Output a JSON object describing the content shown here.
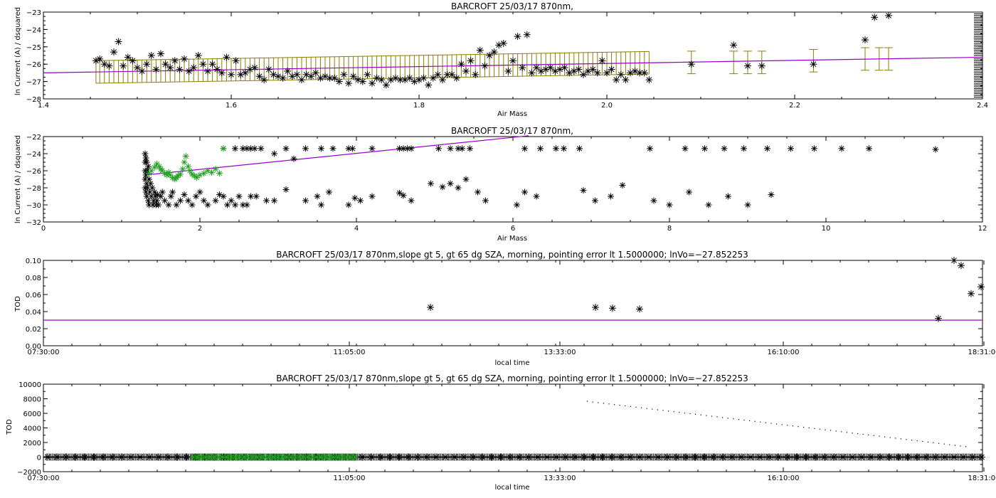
{
  "chart_data": [
    {
      "type": "scatter",
      "title": "BARCROFT 25/03/17 870nm,",
      "xlabel": "Air Mass",
      "ylabel": "ln Current (A) / dsquared",
      "xlim": [
        1.4,
        2.4
      ],
      "ylim": [
        -28,
        -23
      ],
      "xticks": [
        1.4,
        1.6,
        1.8,
        2.0,
        2.2,
        2.4
      ],
      "xtick_labels": [
        "1.4",
        "1.6",
        "1.8",
        "2.0",
        "2.2",
        "2.4"
      ],
      "yticks": [
        -28,
        -27,
        -26,
        -25,
        -24,
        -23
      ],
      "ytick_labels": [
        "−28",
        "−27",
        "−26",
        "−25",
        "−24",
        "−23"
      ],
      "colors": {
        "points": "#000000",
        "fit": "#9900cc",
        "errorbars": "#8b7d00"
      },
      "series": [
        {
          "values_x": [
            1.456,
            1.46,
            1.465,
            1.47,
            1.475,
            1.48,
            1.485,
            1.49,
            1.495,
            1.5,
            1.505,
            1.51,
            1.515,
            1.52,
            1.525,
            1.53,
            1.535,
            1.54,
            1.545,
            1.55,
            1.555,
            1.56,
            1.565,
            1.57,
            1.575,
            1.58,
            1.585,
            1.59,
            1.595,
            1.6,
            1.605,
            1.61,
            1.615,
            1.62,
            1.625,
            1.63,
            1.635,
            1.64,
            1.645,
            1.65,
            1.655,
            1.66,
            1.665,
            1.67,
            1.675,
            1.68,
            1.685,
            1.69,
            1.695,
            1.7,
            1.705,
            1.71,
            1.715,
            1.72,
            1.725,
            1.73,
            1.735,
            1.74,
            1.745,
            1.75,
            1.755,
            1.76,
            1.765,
            1.77,
            1.775,
            1.78,
            1.785,
            1.79,
            1.795,
            1.8,
            1.805,
            1.81,
            1.815,
            1.82,
            1.825,
            1.83,
            1.835,
            1.84,
            1.845,
            1.85,
            1.855,
            1.86,
            1.865,
            1.87,
            1.875,
            1.88,
            1.885,
            1.89,
            1.895,
            1.9,
            1.905,
            1.91,
            1.915,
            1.92,
            1.925,
            1.93,
            1.935,
            1.94,
            1.945,
            1.95,
            1.955,
            1.96,
            1.965,
            1.97,
            1.975,
            1.98,
            1.985,
            1.99,
            1.995,
            2.0,
            2.005,
            2.01,
            2.015,
            2.02,
            2.025,
            2.03,
            2.035,
            2.04,
            2.045
          ],
          "values_y": [
            -25.8,
            -25.7,
            -26.0,
            -26.1,
            -25.3,
            -24.7,
            -26.1,
            -25.6,
            -25.8,
            -26.2,
            -26.4,
            -26.0,
            -25.5,
            -26.3,
            -25.4,
            -26.0,
            -26.2,
            -25.8,
            -26.3,
            -25.7,
            -26.4,
            -26.2,
            -25.5,
            -26.0,
            -26.4,
            -26.0,
            -26.3,
            -26.5,
            -25.6,
            -26.6,
            -25.8,
            -26.6,
            -26.5,
            -26.3,
            -26.2,
            -26.7,
            -26.9,
            -26.3,
            -26.6,
            -26.7,
            -26.8,
            -26.4,
            -26.7,
            -26.6,
            -26.9,
            -26.6,
            -26.7,
            -26.5,
            -26.8,
            -26.7,
            -26.8,
            -26.8,
            -27.0,
            -26.6,
            -27.1,
            -26.7,
            -26.9,
            -27.0,
            -26.6,
            -27.1,
            -26.8,
            -26.9,
            -27.2,
            -26.9,
            -26.8,
            -26.9,
            -26.9,
            -26.8,
            -27.0,
            -26.9,
            -26.8,
            -27.2,
            -26.8,
            -26.6,
            -26.9,
            -26.6,
            -26.6,
            -26.8,
            -26.0,
            -26.4,
            -25.8,
            -26.6,
            -25.2,
            -26.1,
            -25.5,
            -25.3,
            -24.9,
            -24.8,
            -26.4,
            -25.8,
            -24.4,
            -26.2,
            -24.3,
            -26.5,
            -26.2,
            -26.4,
            -26.3,
            -26.2,
            -26.4,
            -26.3,
            -26.2,
            -26.5,
            -26.4,
            -26.3,
            -26.6,
            -26.4,
            -26.3,
            -26.5,
            -25.8,
            -26.5,
            -26.3,
            -26.9,
            -26.6,
            -26.9,
            -26.5,
            -26.4,
            -26.5,
            -26.5,
            -26.9
          ]
        },
        {
          "name": "isolated",
          "values_x": [
            2.09,
            2.135,
            2.15,
            2.165,
            2.22,
            2.275,
            2.285,
            2.3
          ],
          "values_y": [
            -26.0,
            -24.9,
            -26.1,
            -26.1,
            -26.0,
            -24.6,
            -23.3,
            -23.2
          ]
        }
      ],
      "errorbar_x": [
        2.09,
        2.135,
        2.15,
        2.165,
        2.22,
        2.275,
        2.29,
        2.3
      ],
      "errorbar_y": [
        -25.9,
        -25.9,
        -25.9,
        -25.9,
        -25.8,
        -25.7,
        -25.7,
        -25.7
      ],
      "errorbar_halfwidth": 0.65,
      "fit_line": {
        "x": [
          1.4,
          2.4
        ],
        "y": [
          -26.5,
          -25.6
        ]
      }
    },
    {
      "type": "scatter",
      "title": "BARCROFT 25/03/17 870nm,",
      "xlabel": "Air Mass",
      "ylabel": "ln Current (A) / dsquared",
      "xlim": [
        0,
        12
      ],
      "ylim": [
        -32,
        -22
      ],
      "xticks": [
        0,
        2,
        4,
        6,
        8,
        10,
        12
      ],
      "xtick_labels": [
        "0",
        "2",
        "4",
        "6",
        "8",
        "10",
        "12"
      ],
      "yticks": [
        -32,
        -30,
        -28,
        -26,
        -24,
        -22
      ],
      "ytick_labels": [
        "−32",
        "−30",
        "−28",
        "−26",
        "−24",
        "−22"
      ],
      "colors": {
        "black": "#000000",
        "green": "#22a022",
        "fit": "#9900cc"
      },
      "series": [
        {
          "name": "black",
          "values_x": [
            1.3,
            1.3,
            1.3,
            1.3,
            1.3,
            1.31,
            1.31,
            1.31,
            1.32,
            1.32,
            1.32,
            1.33,
            1.33,
            1.34,
            1.34,
            1.35,
            1.35,
            1.36,
            1.37,
            1.38,
            1.39,
            1.4,
            1.41,
            1.42,
            1.43,
            1.44,
            1.45,
            1.46,
            1.47,
            1.5,
            1.52,
            1.55,
            1.6,
            1.63,
            1.65,
            1.7,
            1.75,
            1.8,
            1.85,
            1.9,
            1.95,
            2.0,
            2.05,
            2.1,
            2.2,
            2.25,
            2.3,
            2.35,
            2.4,
            2.45,
            2.5,
            2.55,
            2.6,
            2.65,
            2.72,
            2.85,
            2.95,
            3.1,
            3.35,
            3.5,
            3.55,
            3.65,
            3.9,
            3.98,
            4.05,
            4.2,
            4.55,
            4.6,
            4.7,
            4.95,
            5.1,
            5.2,
            5.3,
            5.4,
            5.55,
            5.65,
            6.05,
            6.15,
            6.3,
            6.9,
            7.05,
            7.25,
            7.4,
            7.8,
            8.0,
            8.25,
            8.5,
            8.75,
            9.0,
            9.3,
            2.3,
            2.45,
            2.55,
            2.6,
            2.65,
            2.7,
            2.78,
            2.95,
            3.1,
            3.2,
            3.35,
            3.55,
            3.7,
            3.9,
            3.95,
            4.2,
            4.55,
            4.6,
            4.65,
            4.7,
            5.05,
            5.2,
            5.3,
            5.35,
            5.45,
            6.15,
            6.35,
            6.55,
            6.65,
            6.85,
            7.75,
            8.2,
            8.45,
            8.7,
            8.95,
            9.25,
            9.55,
            9.85,
            10.2,
            10.55,
            11.4
          ],
          "values_y": [
            -24.0,
            -25.0,
            -26.0,
            -27.0,
            -28.0,
            -24.5,
            -26.5,
            -28.5,
            -25.0,
            -27.5,
            -29.0,
            -26.0,
            -28.0,
            -25.5,
            -29.5,
            -27.0,
            -30.0,
            -28.5,
            -27.5,
            -29.0,
            -28.0,
            -30.0,
            -29.5,
            -28.5,
            -29.0,
            -30.0,
            -29.5,
            -28.8,
            -30.0,
            -29.0,
            -28.5,
            -29.5,
            -30.0,
            -29.0,
            -28.5,
            -30.0,
            -29.5,
            -28.8,
            -29.5,
            -30.0,
            -29.0,
            -28.5,
            -29.5,
            -30.0,
            -29.5,
            -28.8,
            -29.0,
            -30.0,
            -29.5,
            -30.0,
            -29.0,
            -30.0,
            -30.0,
            -29.0,
            -29.0,
            -29.5,
            -29.5,
            -28.2,
            -29.5,
            -29.0,
            -30.0,
            -28.5,
            -30.0,
            -29.2,
            -29.5,
            -29.0,
            -28.6,
            -28.9,
            -29.5,
            -27.5,
            -27.9,
            -27.5,
            -28.0,
            -27.0,
            -28.5,
            -29.5,
            -30.0,
            -28.5,
            -29.0,
            -28.3,
            -29.5,
            -29.0,
            -27.7,
            -29.5,
            -30.0,
            -28.5,
            -30.0,
            -29.0,
            -30.0,
            -28.8,
            -23.4,
            -23.4,
            -23.4,
            -23.4,
            -23.4,
            -23.4,
            -23.4,
            -24.0,
            -23.4,
            -24.6,
            -23.4,
            -23.4,
            -23.4,
            -23.4,
            -23.4,
            -23.4,
            -23.4,
            -23.4,
            -23.4,
            -23.4,
            -23.4,
            -23.4,
            -23.4,
            -23.4,
            -23.4,
            -23.4,
            -23.4,
            -23.4,
            -23.4,
            -23.4,
            -23.4,
            -23.4,
            -23.4,
            -23.4,
            -23.4,
            -23.4,
            -23.4,
            -23.4,
            -23.4,
            -23.4,
            -23.5
          ]
        },
        {
          "name": "green",
          "values_x": [
            1.35,
            1.38,
            1.42,
            1.45,
            1.48,
            1.5,
            1.52,
            1.55,
            1.58,
            1.6,
            1.62,
            1.65,
            1.68,
            1.7,
            1.72,
            1.75,
            1.78,
            1.8,
            1.82,
            1.85,
            1.87,
            1.9,
            1.93,
            1.96,
            2.0,
            2.05,
            2.1,
            2.15,
            2.2,
            2.25,
            2.3
          ],
          "values_y": [
            -26.3,
            -26.0,
            -25.6,
            -25.2,
            -25.5,
            -25.8,
            -26.0,
            -26.3,
            -26.5,
            -26.2,
            -26.5,
            -26.8,
            -27.0,
            -26.8,
            -26.6,
            -26.4,
            -25.8,
            -25.0,
            -24.3,
            -25.5,
            -26.0,
            -26.4,
            -26.6,
            -26.8,
            -26.5,
            -26.3,
            -26.0,
            -26.2,
            -25.8,
            -26.3,
            -23.4
          ]
        }
      ],
      "fit_line": {
        "x": [
          1.3,
          6.2
        ],
        "y": [
          -26.5,
          -21.9
        ]
      }
    },
    {
      "type": "scatter",
      "title": "BARCROFT 25/03/17 870nm,slope gt 5, gt 65 dg SZA, morning, pointing error lt 1.5000000; lnVo=−27.852253",
      "xlabel": "local time",
      "ylabel": "TOD",
      "xlim": [
        0,
        660
      ],
      "ylim": [
        0,
        0.1
      ],
      "xticks": [
        0,
        215,
        363,
        520,
        661
      ],
      "xtick_labels": [
        "07:30:00",
        "11:05:00",
        "13:33:00",
        "16:10:00",
        "18:31:00"
      ],
      "yticks": [
        0,
        0.02,
        0.04,
        0.06,
        0.08,
        0.1
      ],
      "ytick_labels": [
        "0.00",
        "0.02",
        "0.04",
        "0.06",
        "0.08",
        "0.10"
      ],
      "colors": {
        "points": "#000000",
        "line": "#9900cc"
      },
      "series": [
        {
          "values_x": [
            272,
            388,
            400,
            419,
            629,
            640,
            645,
            652,
            659
          ],
          "values_y": [
            0.045,
            0.045,
            0.044,
            0.043,
            0.032,
            0.101,
            0.094,
            0.061,
            0.069
          ]
        }
      ],
      "hline": 0.03
    },
    {
      "type": "scatter",
      "title": "BARCROFT 25/03/17 870nm,slope gt 5, gt 65 dg SZA, morning, pointing error lt 1.5000000; lnVo=−27.852253",
      "xlabel": "local time",
      "ylabel": "TOD",
      "xlim": [
        0,
        660
      ],
      "ylim": [
        -2000,
        10000
      ],
      "xticks": [
        0,
        215,
        363,
        520,
        661
      ],
      "xtick_labels": [
        "07:30:00",
        "11:05:00",
        "13:33:00",
        "16:10:00",
        "18:31:00"
      ],
      "yticks": [
        -2000,
        0,
        2000,
        4000,
        6000,
        8000,
        10000
      ],
      "ytick_labels": [
        "−2000",
        "0",
        "2000",
        "4000",
        "6000",
        "8000",
        "10000"
      ],
      "colors": {
        "black": "#000000",
        "green": "#22a022"
      },
      "baseline_black": {
        "x_from": 0,
        "x_to": 660,
        "y": 0
      },
      "baseline_green": {
        "x_from": 105,
        "x_to": 220,
        "y": 0
      },
      "decay_dots": {
        "x": [
          382,
          648
        ],
        "y": [
          7700,
          1500
        ]
      }
    }
  ]
}
